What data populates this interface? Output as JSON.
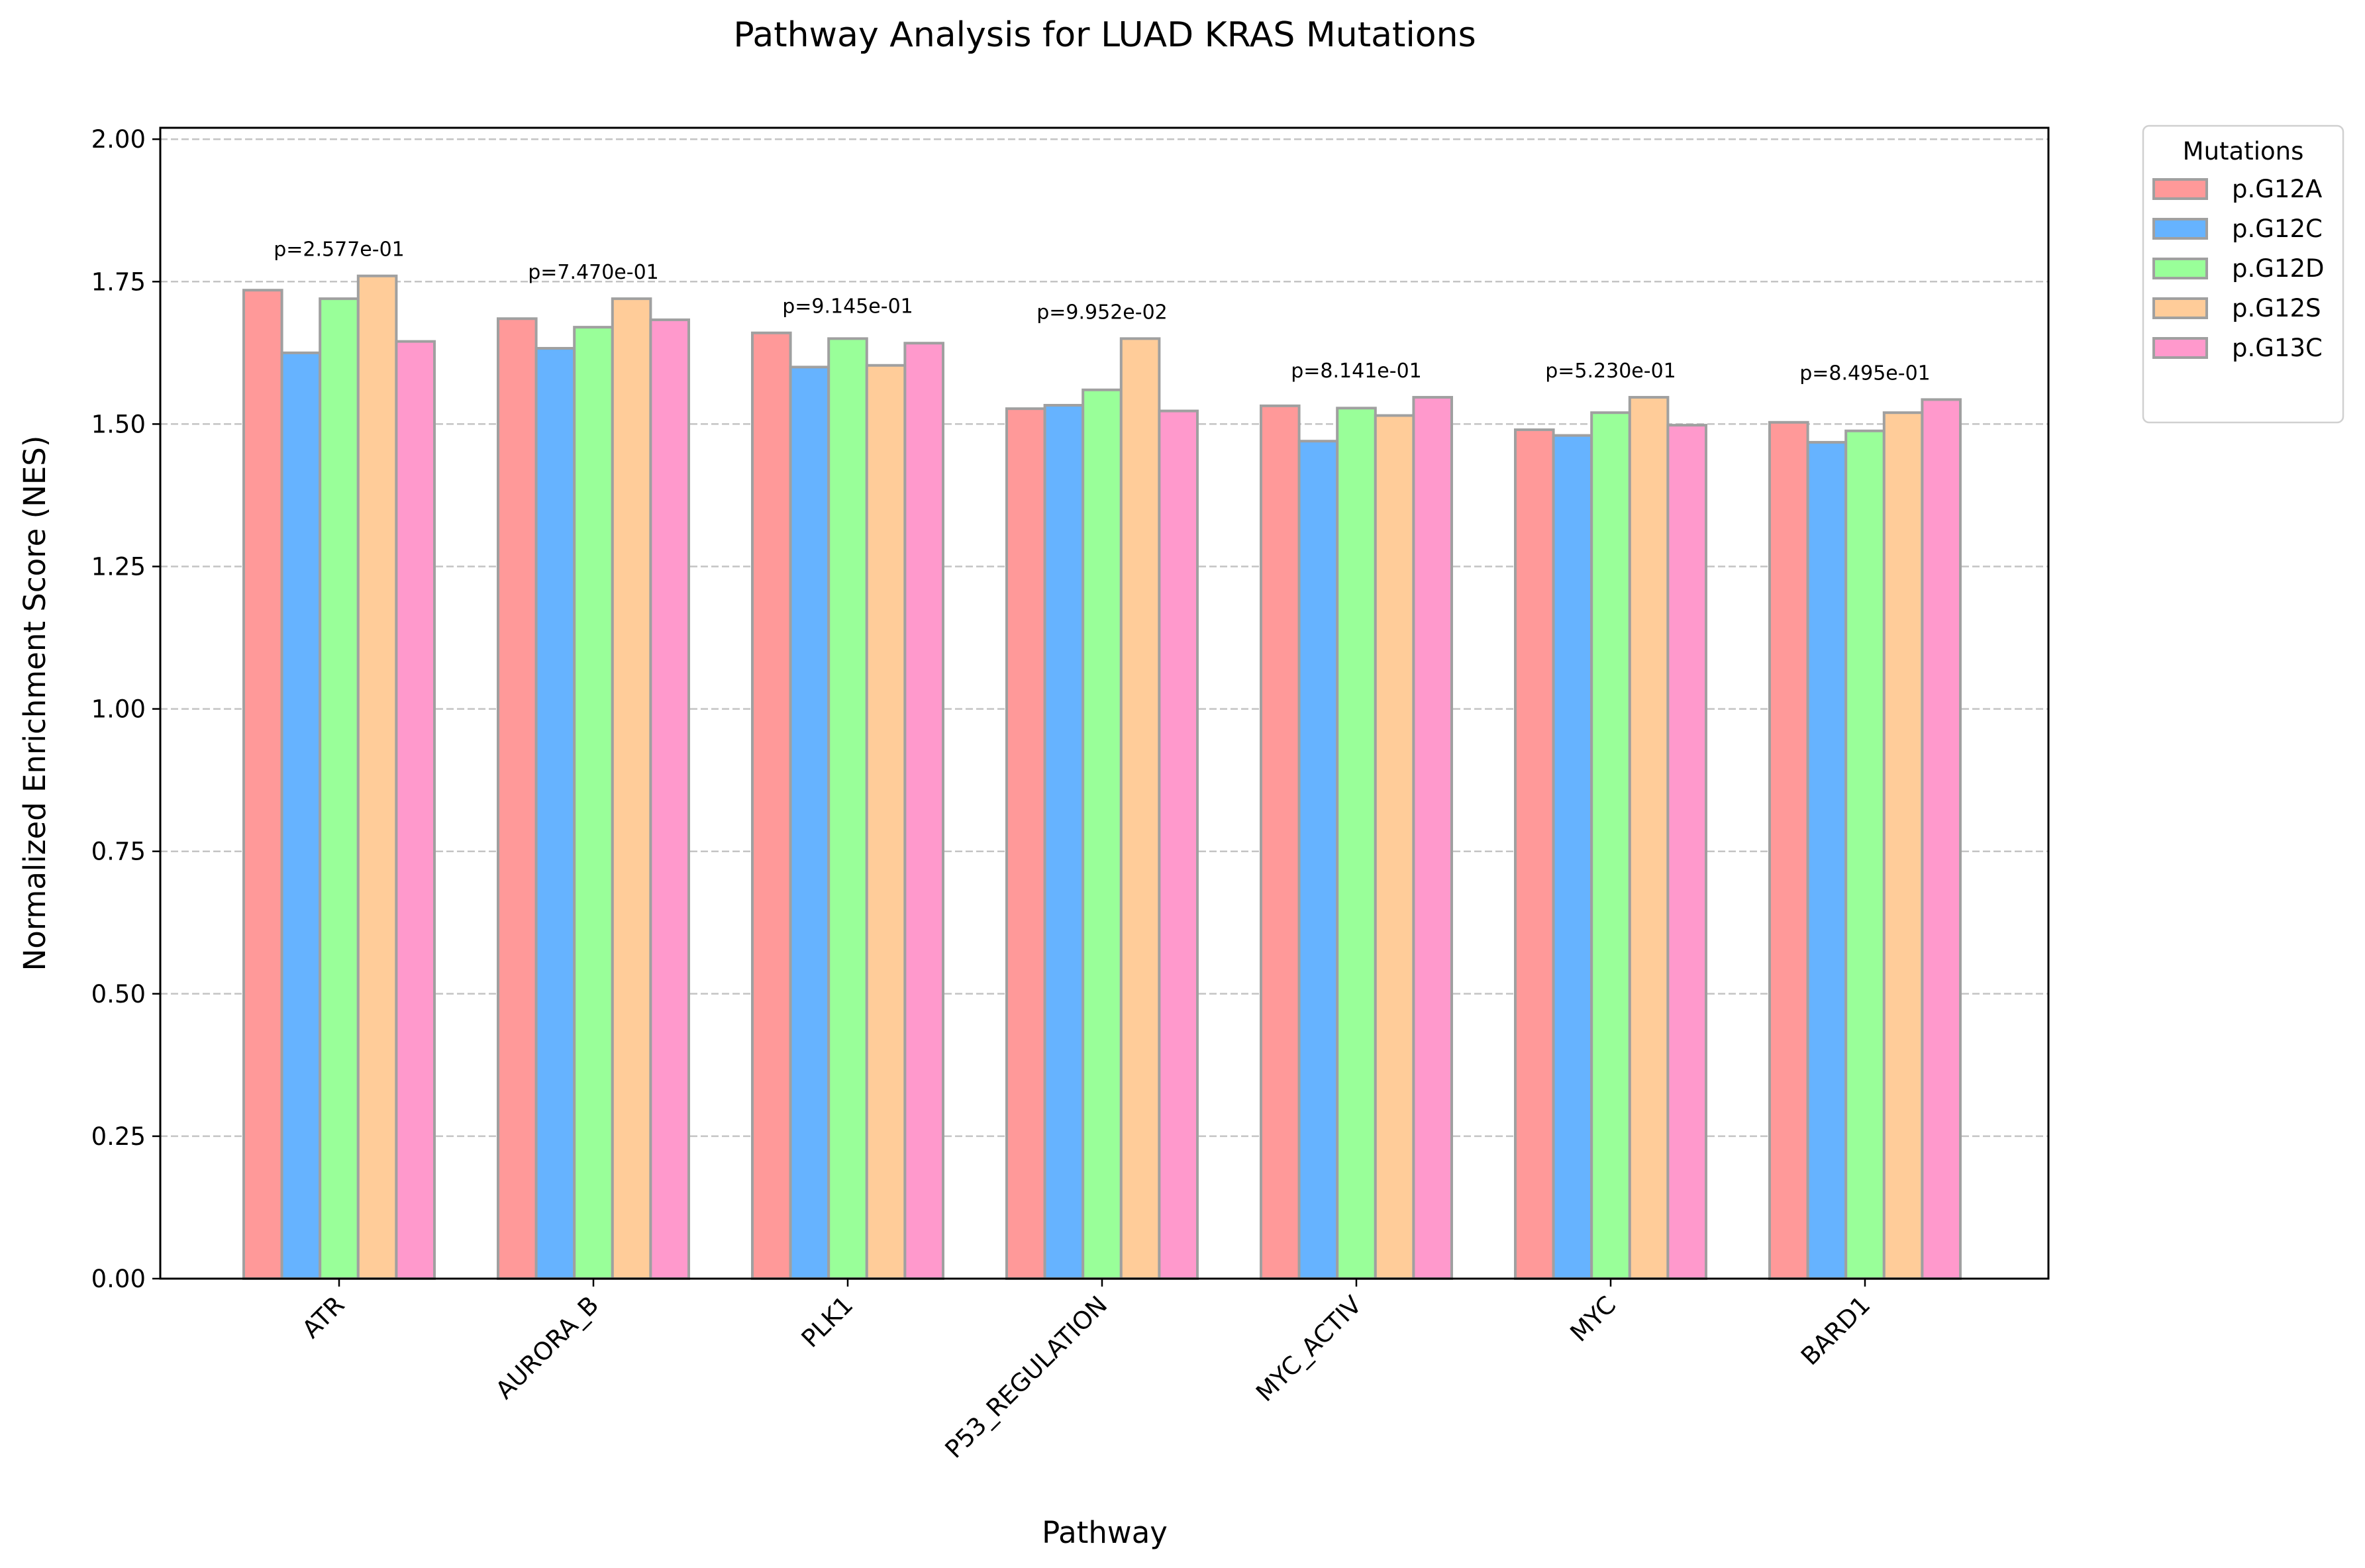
{
  "chart_data": {
    "type": "bar",
    "title": "Pathway Analysis for LUAD KRAS Mutations",
    "xlabel": "Pathway",
    "ylabel": "Normalized Enrichment Score (NES)",
    "ylim": [
      0,
      2.02
    ],
    "yticks": [
      "0.00",
      "0.25",
      "0.50",
      "0.75",
      "1.00",
      "1.25",
      "1.50",
      "1.75",
      "2.00"
    ],
    "grid": "y-dashed",
    "categories": [
      "ATR",
      "AURORA_B",
      "PLK1",
      "P53_REGULATION",
      "MYC_ACTIV",
      "MYC",
      "BARD1"
    ],
    "series": [
      {
        "name": "p.G12A",
        "color": "#ff9999",
        "values": [
          1.735,
          1.685,
          1.66,
          1.527,
          1.532,
          1.49,
          1.503
        ]
      },
      {
        "name": "p.G12C",
        "color": "#66b3ff",
        "values": [
          1.625,
          1.633,
          1.6,
          1.533,
          1.47,
          1.48,
          1.468
        ]
      },
      {
        "name": "p.G12D",
        "color": "#99ff99",
        "values": [
          1.72,
          1.67,
          1.65,
          1.56,
          1.528,
          1.52,
          1.488
        ]
      },
      {
        "name": "p.G12S",
        "color": "#ffcc99",
        "values": [
          1.76,
          1.72,
          1.603,
          1.65,
          1.515,
          1.547,
          1.52
        ]
      },
      {
        "name": "p.G13C",
        "color": "#ff99cc",
        "values": [
          1.645,
          1.683,
          1.642,
          1.523,
          1.547,
          1.498,
          1.543
        ]
      }
    ],
    "p_values": [
      "p=2.577e-01",
      "p=7.470e-01",
      "p=9.145e-01",
      "p=9.952e-02",
      "p=8.141e-01",
      "p=5.230e-01",
      "p=8.495e-01"
    ],
    "legend": {
      "title": "Mutations",
      "placement": "outside-top-right"
    },
    "bar_edge_color": "#a0a0a0"
  }
}
